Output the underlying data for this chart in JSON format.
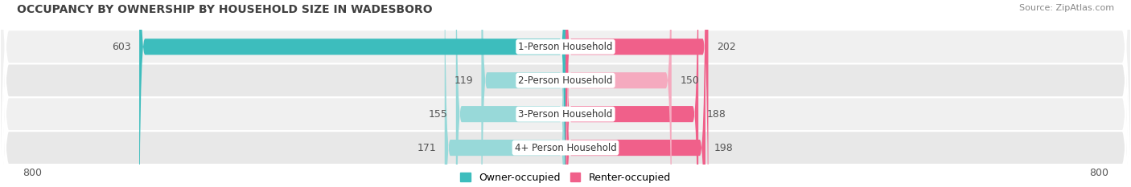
{
  "title": "OCCUPANCY BY OWNERSHIP BY HOUSEHOLD SIZE IN WADESBORO",
  "source": "Source: ZipAtlas.com",
  "categories": [
    "1-Person Household",
    "2-Person Household",
    "3-Person Household",
    "4+ Person Household"
  ],
  "owner_values": [
    603,
    119,
    155,
    171
  ],
  "renter_values": [
    202,
    150,
    188,
    198
  ],
  "owner_colors": [
    "#3dbdbd",
    "#98d9d9",
    "#98d9d9",
    "#98d9d9"
  ],
  "renter_colors": [
    "#f0608a",
    "#f5aabf",
    "#f0608a",
    "#f0608a"
  ],
  "row_bg_colors": [
    "#f0f0f0",
    "#e8e8e8",
    "#f0f0f0",
    "#e8e8e8"
  ],
  "label_color": "#555555",
  "title_color": "#404040",
  "axis_max": 800,
  "bar_height": 0.48,
  "legend_owner": "Owner-occupied",
  "legend_renter": "Renter-occupied",
  "owner_legend_color": "#3dbdbd",
  "renter_legend_color": "#f0608a"
}
